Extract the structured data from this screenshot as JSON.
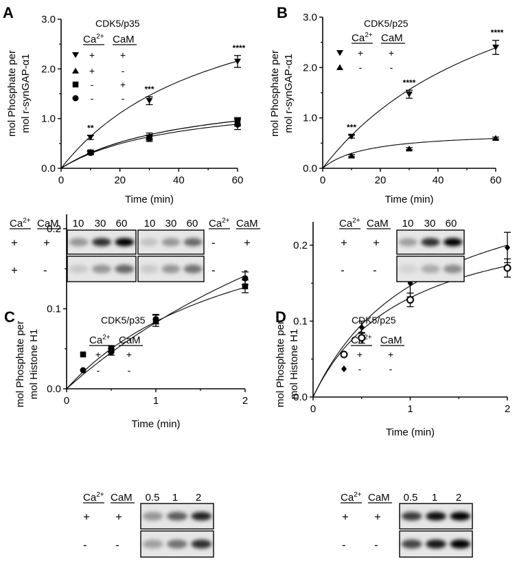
{
  "panels": [
    {
      "id": "A",
      "letter": "A",
      "enzyme": "CDK5/p35",
      "legend_headers": [
        "Ca2+",
        "CaM"
      ],
      "ylabel": [
        "mol Phosphate per",
        "mol r-synGAP-α1"
      ],
      "xlabel": "Time (min)",
      "conditions": [
        {
          "marker": "triangle-down",
          "ca": "+",
          "cam": "+"
        },
        {
          "marker": "triangle-up",
          "ca": "+",
          "cam": "-"
        },
        {
          "marker": "square",
          "ca": "-",
          "cam": "+"
        },
        {
          "marker": "circle",
          "ca": "-",
          "cam": "-"
        }
      ],
      "blot": {
        "left": {
          "headers": [
            "Ca2+",
            "CaM"
          ],
          "rows": [
            [
              "+",
              "+"
            ],
            [
              "+",
              "-"
            ]
          ]
        },
        "right": {
          "headers": [
            "Ca2+",
            "CaM"
          ],
          "rows": [
            [
              "-",
              "+"
            ],
            [
              "-",
              "-"
            ]
          ]
        },
        "time_labels": [
          "10",
          "30",
          "60",
          "10",
          "30",
          "60"
        ]
      }
    },
    {
      "id": "B",
      "letter": "B",
      "enzyme": "CDK5/p25",
      "legend_headers": [
        "Ca2+",
        "CaM"
      ],
      "ylabel": [
        "mol Phosphate per",
        "mol r-synGAP-α1"
      ],
      "xlabel": "Time (min)",
      "conditions": [
        {
          "marker": "triangle-down",
          "ca": "+",
          "cam": "+"
        },
        {
          "marker": "triangle-up",
          "ca": "-",
          "cam": "-"
        }
      ],
      "blot": {
        "left": {
          "headers": [
            "Ca2+",
            "CaM"
          ],
          "rows": [
            [
              "+",
              "+"
            ],
            [
              "-",
              "-"
            ]
          ]
        },
        "time_labels": [
          "10",
          "30",
          "60"
        ]
      }
    },
    {
      "id": "C",
      "letter": "C",
      "enzyme": "CDK5/p35",
      "legend_headers": [
        "Ca2+",
        "CaM"
      ],
      "ylabel": [
        "mol Phosphate per",
        "mol Histone H1"
      ],
      "xlabel": "Time (min)",
      "conditions": [
        {
          "marker": "square",
          "ca": "+",
          "cam": "+"
        },
        {
          "marker": "circle",
          "ca": "-",
          "cam": "-"
        }
      ],
      "blot": {
        "left": {
          "headers": [
            "Ca2+",
            "CaM"
          ],
          "rows": [
            [
              "+",
              "+"
            ],
            [
              "-",
              "-"
            ]
          ]
        },
        "time_labels": [
          "0.5",
          "1",
          "2"
        ]
      }
    },
    {
      "id": "D",
      "letter": "D",
      "enzyme": "CDK5/p25",
      "legend_headers": [
        "Ca2+",
        "CaM"
      ],
      "ylabel": [
        "mol Phosphate per",
        "mol Histone H1"
      ],
      "xlabel": "Time (min)",
      "conditions": [
        {
          "marker": "circle-open",
          "ca": "+",
          "cam": "+"
        },
        {
          "marker": "diamond",
          "ca": "-",
          "cam": "-"
        }
      ],
      "blot": {
        "left": {
          "headers": [
            "Ca2+",
            "CaM"
          ],
          "rows": [
            [
              "+",
              "+"
            ],
            [
              "-",
              "-"
            ]
          ]
        },
        "time_labels": [
          "0.5",
          "1",
          "2"
        ]
      }
    }
  ],
  "chart_data": [
    {
      "type": "scatter",
      "panel": "A",
      "title": "CDK5/p35",
      "xlabel": "Time (min)",
      "ylabel": "mol Phosphate per mol r-synGAP-α1",
      "xlim": [
        0,
        60
      ],
      "ylim": [
        0,
        3.0
      ],
      "xticks": [
        0,
        20,
        40,
        60
      ],
      "yticks": [
        0.0,
        1.0,
        2.0,
        3.0
      ],
      "ytick_labels": [
        "0.0",
        "1.0",
        "2.0",
        "3.0"
      ],
      "fit_curves": true,
      "series": [
        {
          "ca": "+",
          "cam": "+",
          "marker": "triangle-down",
          "x": [
            10,
            30,
            60
          ],
          "y": [
            0.62,
            1.36,
            2.15
          ],
          "err": [
            0.04,
            0.08,
            0.12
          ],
          "fit_vmax": 4.1,
          "fit_km": 54,
          "annotations": [
            "**",
            "***",
            "****"
          ]
        },
        {
          "ca": "+",
          "cam": "-",
          "marker": "triangle-up",
          "x": [
            10,
            30,
            60
          ],
          "y": [
            0.33,
            0.65,
            0.93
          ],
          "err": [
            0.03,
            0.06,
            0.08
          ],
          "fit_vmax": 1.62,
          "fit_km": 42
        },
        {
          "ca": "-",
          "cam": "+",
          "marker": "square",
          "x": [
            10,
            30,
            60
          ],
          "y": [
            0.32,
            0.62,
            0.95
          ],
          "err": [
            0.03,
            0.05,
            0.07
          ],
          "fit_vmax": 1.62,
          "fit_km": 42
        },
        {
          "ca": "-",
          "cam": "-",
          "marker": "circle",
          "x": [
            10,
            30,
            60
          ],
          "y": [
            0.31,
            0.6,
            0.88
          ],
          "err": [
            0.03,
            0.06,
            0.1
          ],
          "fit_vmax": 1.48,
          "fit_km": 40
        }
      ]
    },
    {
      "type": "scatter",
      "panel": "B",
      "title": "CDK5/p25",
      "xlabel": "Time (min)",
      "ylabel": "mol Phosphate per mol r-synGAP-α1",
      "xlim": [
        0,
        60
      ],
      "ylim": [
        0,
        3.0
      ],
      "xticks": [
        0,
        20,
        40,
        60
      ],
      "yticks": [
        0.0,
        1.0,
        2.0,
        3.0
      ],
      "ytick_labels": [
        "0.0",
        "1.0",
        "2.0",
        "3.0"
      ],
      "fit_curves": true,
      "series": [
        {
          "ca": "+",
          "cam": "+",
          "marker": "triangle-down",
          "x": [
            10,
            30,
            60
          ],
          "y": [
            0.63,
            1.47,
            2.4
          ],
          "err": [
            0.03,
            0.08,
            0.14
          ],
          "fit_vmax": 5.1,
          "fit_km": 68,
          "annotations": [
            "***",
            "****",
            "****"
          ]
        },
        {
          "ca": "-",
          "cam": "-",
          "marker": "triangle-up",
          "x": [
            10,
            30,
            60
          ],
          "y": [
            0.25,
            0.39,
            0.6
          ],
          "err": [
            0.02,
            0.02,
            0.02
          ],
          "fit_vmax": 0.74,
          "fit_km": 15
        }
      ]
    },
    {
      "type": "scatter",
      "panel": "C",
      "title": "CDK5/p35",
      "xlabel": "Time (min)",
      "ylabel": "mol Phosphate per mol Histone H1",
      "xlim": [
        0,
        2
      ],
      "ylim": [
        0,
        0.25
      ],
      "xticks": [
        0,
        1,
        2
      ],
      "yticks": [
        0.0,
        0.1,
        0.2
      ],
      "ytick_labels": [
        "0.0",
        "0.1",
        "0.2"
      ],
      "fit_curves": true,
      "series": [
        {
          "ca": "+",
          "cam": "+",
          "marker": "square",
          "x": [
            0.5,
            1,
            2
          ],
          "y": [
            0.05,
            0.085,
            0.128
          ],
          "err": [
            0.004,
            0.007,
            0.008
          ],
          "fit_vmax": 0.26,
          "fit_km": 2.1
        },
        {
          "ca": "-",
          "cam": "-",
          "marker": "circle",
          "x": [
            0.5,
            1,
            2
          ],
          "y": [
            0.046,
            0.087,
            0.138
          ],
          "err": [
            0.004,
            0.006,
            0.008
          ],
          "fit_vmax": 0.48,
          "fit_km": 4.8
        }
      ]
    },
    {
      "type": "scatter",
      "panel": "D",
      "title": "CDK5/p25",
      "xlabel": "Time (min)",
      "ylabel": "mol Phosphate per mol Histone H1",
      "xlim": [
        0,
        2
      ],
      "ylim": [
        0,
        0.25
      ],
      "xticks": [
        0,
        1,
        2
      ],
      "yticks": [
        0.0,
        0.1,
        0.2
      ],
      "ytick_labels": [
        "0.0",
        "0.1",
        "0.2"
      ],
      "fit_curves": true,
      "series": [
        {
          "ca": "+",
          "cam": "+",
          "marker": "circle-open",
          "x": [
            0.5,
            1,
            2
          ],
          "y": [
            0.078,
            0.128,
            0.17
          ],
          "err": [
            0.007,
            0.009,
            0.012
          ],
          "fit_vmax": 0.255,
          "fit_km": 0.95
        },
        {
          "ca": "-",
          "cam": "-",
          "marker": "diamond",
          "x": [
            0.5,
            1,
            2
          ],
          "y": [
            0.092,
            0.15,
            0.197
          ],
          "err": [
            0.008,
            0.018,
            0.02
          ],
          "fit_vmax": 0.315,
          "fit_km": 1.15
        }
      ]
    }
  ]
}
